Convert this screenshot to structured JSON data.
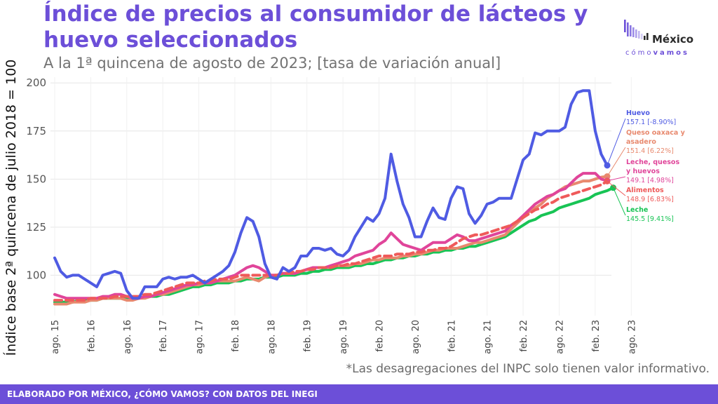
{
  "header": {
    "title": "Índice de precios al consumidor de lácteos y huevo seleccionados",
    "subtitle": "A la 1ª quincena de agosto de 2023; [tasa de variación anual]"
  },
  "logo": {
    "name": "México",
    "tag_light": "cómo",
    "tag_bold": "vamos"
  },
  "note": "*Las desagregaciones del INPC solo tienen valor informativo.",
  "footer": "ELABORADO POR MÉXICO, ¿CÓMO VAMOS? CON DATOS DEL INEGI",
  "colors": {
    "accent": "#6C4FD8",
    "Huevo": "#4F5BE3",
    "Queso oaxaca y asadero": "#E8896E",
    "Leche, quesos y huevos": "#E0459A",
    "Alimentos": "#EF5A5A",
    "Leche": "#18C455"
  },
  "chart_data": {
    "type": "line",
    "title": "Índice de precios al consumidor de lácteos y huevo seleccionados",
    "ylabel": "Índice base 2ª quincena de julio 2018 = 100",
    "xlabel": "",
    "ylim": [
      79,
      203
    ],
    "yticks": [
      100,
      125,
      150,
      175,
      200
    ],
    "grid": true,
    "xticks": [
      "ago. 15",
      "feb. 16",
      "ago. 16",
      "feb. 17",
      "ago. 17",
      "feb. 18",
      "ago. 18",
      "feb. 19",
      "ago. 19",
      "feb. 20",
      "ago. 20",
      "feb. 21",
      "ago. 21",
      "feb. 22",
      "ago. 22",
      "feb. 23",
      "ago. 23"
    ],
    "x_start": "2015-08",
    "x_step": "1 month",
    "series": [
      {
        "name": "Huevo",
        "end_label": "157.1 [-8.90%]",
        "values": [
          109,
          102,
          99,
          100,
          100,
          98,
          96,
          94,
          100,
          101,
          102,
          101,
          92,
          88,
          88,
          94,
          94,
          94,
          98,
          99,
          98,
          99,
          99,
          100,
          98,
          96,
          98,
          100,
          102,
          105,
          112,
          122,
          130,
          128,
          120,
          106,
          99,
          98,
          104,
          102,
          104,
          110,
          110,
          114,
          114,
          113,
          114,
          111,
          110,
          113,
          120,
          125,
          130,
          128,
          132,
          140,
          163,
          149,
          137,
          130,
          120,
          120,
          128,
          135,
          130,
          129,
          140,
          146,
          145,
          132,
          127,
          131,
          137,
          138,
          140,
          140,
          140,
          150,
          160,
          163,
          174,
          173,
          175,
          175,
          175,
          177,
          189,
          195,
          196,
          196,
          175,
          163,
          157.1
        ]
      },
      {
        "name": "Queso oaxaca y asadero",
        "end_label": "151.4 [6.22%]",
        "values": [
          85,
          85,
          85,
          86,
          86,
          86,
          87,
          87,
          88,
          88,
          88,
          88,
          87,
          87,
          88,
          88,
          89,
          90,
          90,
          91,
          92,
          93,
          94,
          95,
          95,
          96,
          96,
          97,
          97,
          97,
          97,
          98,
          99,
          98,
          97,
          99,
          100,
          100,
          101,
          101,
          101,
          102,
          103,
          104,
          104,
          104,
          104,
          105,
          105,
          105,
          106,
          106,
          107,
          108,
          108,
          109,
          109,
          109,
          110,
          110,
          111,
          111,
          112,
          113,
          113,
          114,
          114,
          114,
          115,
          116,
          117,
          117,
          118,
          119,
          120,
          121,
          124,
          127,
          130,
          133,
          135,
          137,
          140,
          142,
          144,
          146,
          147,
          148,
          149,
          149,
          150,
          151,
          151.4
        ]
      },
      {
        "name": "Leche, quesos y huevos",
        "end_label": "149.1 [4.98%]",
        "values": [
          90,
          89,
          88,
          88,
          88,
          88,
          88,
          88,
          89,
          89,
          90,
          90,
          89,
          88,
          88,
          89,
          89,
          90,
          91,
          92,
          93,
          94,
          95,
          95,
          96,
          96,
          96,
          97,
          98,
          99,
          100,
          102,
          104,
          105,
          104,
          102,
          100,
          100,
          101,
          101,
          101,
          102,
          103,
          104,
          104,
          104,
          105,
          106,
          107,
          108,
          110,
          111,
          112,
          113,
          116,
          118,
          122,
          119,
          116,
          115,
          114,
          113,
          115,
          117,
          117,
          117,
          119,
          121,
          120,
          118,
          118,
          119,
          120,
          121,
          122,
          123,
          126,
          128,
          131,
          134,
          137,
          139,
          141,
          142,
          144,
          145,
          148,
          151,
          153,
          153,
          153,
          150,
          149.1
        ]
      },
      {
        "name": "Alimentos",
        "end_label": "148.9 [6.83%]",
        "values": [
          87,
          87,
          87,
          87,
          87,
          87,
          88,
          88,
          88,
          88,
          89,
          89,
          89,
          89,
          89,
          90,
          90,
          91,
          92,
          93,
          94,
          95,
          96,
          96,
          96,
          97,
          97,
          98,
          98,
          98,
          99,
          100,
          100,
          100,
          100,
          100,
          100,
          100,
          101,
          101,
          102,
          102,
          103,
          103,
          104,
          104,
          104,
          105,
          105,
          106,
          106,
          107,
          108,
          109,
          110,
          110,
          110,
          111,
          111,
          111,
          112,
          112,
          113,
          113,
          114,
          114,
          115,
          117,
          119,
          120,
          121,
          121,
          122,
          123,
          124,
          125,
          126,
          128,
          130,
          132,
          134,
          135,
          137,
          138,
          140,
          141,
          142,
          143,
          144,
          145,
          146,
          147,
          148.9
        ]
      },
      {
        "name": "Leche",
        "end_label": "145.5 [9.41%]",
        "values": [
          86,
          86,
          86,
          86,
          87,
          87,
          87,
          87,
          88,
          88,
          88,
          88,
          88,
          88,
          88,
          89,
          89,
          89,
          90,
          90,
          91,
          92,
          93,
          94,
          94,
          95,
          95,
          96,
          96,
          96,
          97,
          97,
          98,
          98,
          98,
          99,
          99,
          99,
          100,
          100,
          100,
          101,
          101,
          102,
          102,
          103,
          103,
          104,
          104,
          104,
          105,
          105,
          106,
          106,
          107,
          108,
          108,
          109,
          109,
          110,
          110,
          111,
          111,
          112,
          112,
          113,
          113,
          114,
          114,
          115,
          115,
          116,
          117,
          118,
          119,
          120,
          122,
          124,
          126,
          128,
          129,
          131,
          132,
          133,
          135,
          136,
          137,
          138,
          139,
          140,
          142,
          143,
          144,
          145.5
        ]
      }
    ]
  }
}
